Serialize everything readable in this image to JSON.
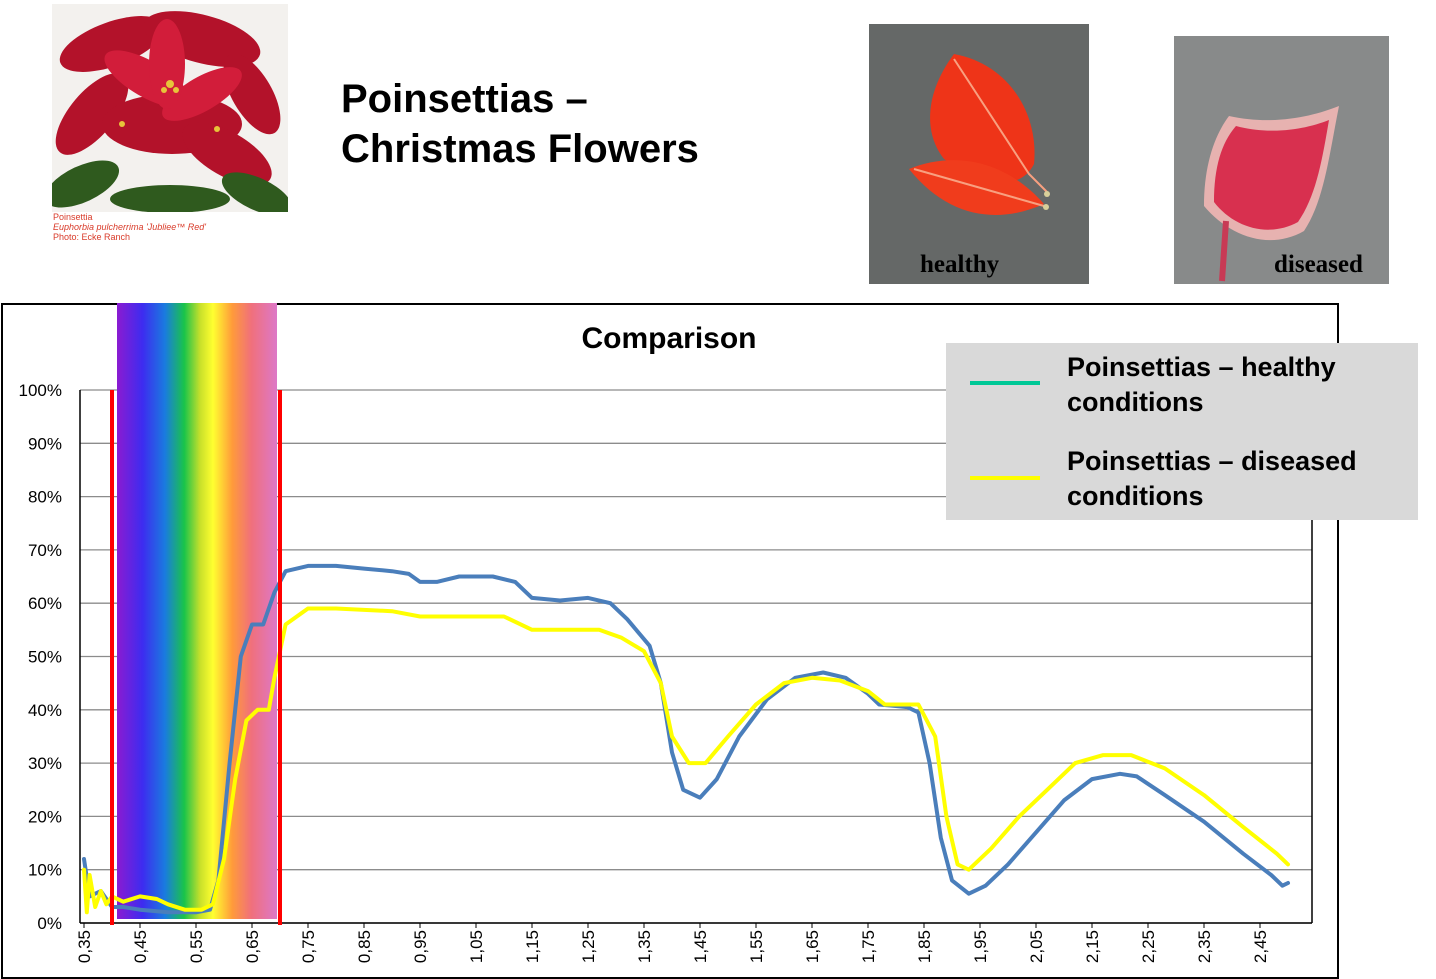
{
  "header": {
    "title_line1": "Poinsettias –",
    "title_line2": "Christmas Flowers",
    "photo_caption": [
      "Poinsettia",
      "Euphorbia pulcherrima 'Jubliee™ Red'",
      "Photo: Ecke Ranch"
    ],
    "healthy_label": "healthy",
    "diseased_label": "diseased"
  },
  "colors": {
    "healthy_legend": "#00c896",
    "healthy_line": "#4a7ebb",
    "diseased": "#ffff00",
    "marker": "#ff0000"
  },
  "chart_data": {
    "type": "line",
    "title": "Comparison",
    "xlabel": "",
    "ylabel": "",
    "xlim": [
      0.35,
      2.5
    ],
    "ylim": [
      0,
      1
    ],
    "y_ticks": [
      "0%",
      "10%",
      "20%",
      "30%",
      "40%",
      "50%",
      "60%",
      "70%",
      "80%",
      "90%",
      "100%"
    ],
    "x_ticks": [
      "0,35",
      "0,45",
      "0,55",
      "0,65",
      "0,75",
      "0,85",
      "0,95",
      "1,05",
      "1,15",
      "1,25",
      "1,35",
      "1,45",
      "1,55",
      "1,65",
      "1,75",
      "1,85",
      "1,95",
      "2,05",
      "2,15",
      "2,25",
      "2,35",
      "2,45"
    ],
    "visible_spectrum": [
      0.4,
      0.7
    ],
    "grid": true,
    "legend_position": "top-right",
    "series": [
      {
        "name": "Poinsettias – healthy conditions",
        "points": [
          [
            0.35,
            0.12
          ],
          [
            0.36,
            0.05
          ],
          [
            0.38,
            0.06
          ],
          [
            0.4,
            0.03
          ],
          [
            0.42,
            0.03
          ],
          [
            0.45,
            0.025
          ],
          [
            0.5,
            0.02
          ],
          [
            0.55,
            0.02
          ],
          [
            0.575,
            0.025
          ],
          [
            0.59,
            0.08
          ],
          [
            0.61,
            0.3
          ],
          [
            0.63,
            0.5
          ],
          [
            0.65,
            0.56
          ],
          [
            0.67,
            0.56
          ],
          [
            0.69,
            0.62
          ],
          [
            0.71,
            0.66
          ],
          [
            0.75,
            0.67
          ],
          [
            0.8,
            0.67
          ],
          [
            0.85,
            0.665
          ],
          [
            0.9,
            0.66
          ],
          [
            0.93,
            0.655
          ],
          [
            0.95,
            0.64
          ],
          [
            0.98,
            0.64
          ],
          [
            1.02,
            0.65
          ],
          [
            1.08,
            0.65
          ],
          [
            1.12,
            0.64
          ],
          [
            1.15,
            0.61
          ],
          [
            1.2,
            0.605
          ],
          [
            1.25,
            0.61
          ],
          [
            1.29,
            0.6
          ],
          [
            1.32,
            0.57
          ],
          [
            1.36,
            0.52
          ],
          [
            1.38,
            0.45
          ],
          [
            1.4,
            0.32
          ],
          [
            1.42,
            0.25
          ],
          [
            1.45,
            0.235
          ],
          [
            1.48,
            0.27
          ],
          [
            1.52,
            0.35
          ],
          [
            1.57,
            0.42
          ],
          [
            1.62,
            0.46
          ],
          [
            1.67,
            0.47
          ],
          [
            1.71,
            0.46
          ],
          [
            1.75,
            0.43
          ],
          [
            1.77,
            0.41
          ],
          [
            1.82,
            0.405
          ],
          [
            1.84,
            0.395
          ],
          [
            1.86,
            0.3
          ],
          [
            1.88,
            0.16
          ],
          [
            1.9,
            0.08
          ],
          [
            1.93,
            0.055
          ],
          [
            1.96,
            0.07
          ],
          [
            2.0,
            0.11
          ],
          [
            2.05,
            0.17
          ],
          [
            2.1,
            0.23
          ],
          [
            2.15,
            0.27
          ],
          [
            2.2,
            0.28
          ],
          [
            2.23,
            0.275
          ],
          [
            2.28,
            0.24
          ],
          [
            2.35,
            0.19
          ],
          [
            2.42,
            0.13
          ],
          [
            2.47,
            0.09
          ],
          [
            2.49,
            0.07
          ],
          [
            2.5,
            0.075
          ]
        ]
      },
      {
        "name": "Poinsettias – diseased conditions",
        "points": [
          [
            0.35,
            0.1
          ],
          [
            0.355,
            0.02
          ],
          [
            0.36,
            0.09
          ],
          [
            0.37,
            0.03
          ],
          [
            0.38,
            0.06
          ],
          [
            0.39,
            0.035
          ],
          [
            0.4,
            0.05
          ],
          [
            0.42,
            0.04
          ],
          [
            0.45,
            0.05
          ],
          [
            0.48,
            0.045
          ],
          [
            0.5,
            0.035
          ],
          [
            0.53,
            0.025
          ],
          [
            0.56,
            0.025
          ],
          [
            0.58,
            0.035
          ],
          [
            0.6,
            0.12
          ],
          [
            0.62,
            0.27
          ],
          [
            0.64,
            0.38
          ],
          [
            0.66,
            0.4
          ],
          [
            0.68,
            0.4
          ],
          [
            0.69,
            0.46
          ],
          [
            0.71,
            0.56
          ],
          [
            0.75,
            0.59
          ],
          [
            0.8,
            0.59
          ],
          [
            0.9,
            0.585
          ],
          [
            0.95,
            0.575
          ],
          [
            1.0,
            0.575
          ],
          [
            1.1,
            0.575
          ],
          [
            1.15,
            0.55
          ],
          [
            1.2,
            0.55
          ],
          [
            1.27,
            0.55
          ],
          [
            1.31,
            0.535
          ],
          [
            1.35,
            0.51
          ],
          [
            1.38,
            0.45
          ],
          [
            1.4,
            0.35
          ],
          [
            1.43,
            0.3
          ],
          [
            1.46,
            0.3
          ],
          [
            1.5,
            0.35
          ],
          [
            1.55,
            0.41
          ],
          [
            1.6,
            0.45
          ],
          [
            1.65,
            0.46
          ],
          [
            1.7,
            0.455
          ],
          [
            1.75,
            0.435
          ],
          [
            1.78,
            0.41
          ],
          [
            1.84,
            0.41
          ],
          [
            1.87,
            0.35
          ],
          [
            1.89,
            0.2
          ],
          [
            1.91,
            0.11
          ],
          [
            1.93,
            0.1
          ],
          [
            1.97,
            0.14
          ],
          [
            2.02,
            0.2
          ],
          [
            2.07,
            0.25
          ],
          [
            2.12,
            0.3
          ],
          [
            2.17,
            0.315
          ],
          [
            2.22,
            0.315
          ],
          [
            2.28,
            0.29
          ],
          [
            2.35,
            0.24
          ],
          [
            2.42,
            0.18
          ],
          [
            2.48,
            0.13
          ],
          [
            2.5,
            0.11
          ]
        ]
      }
    ]
  }
}
